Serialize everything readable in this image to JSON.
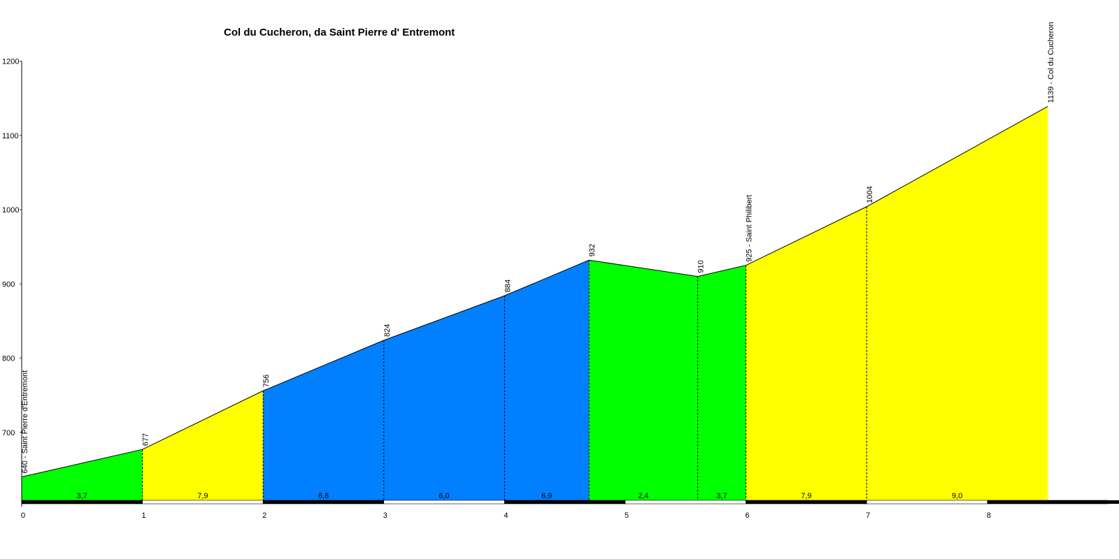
{
  "chart_data": {
    "type": "area",
    "title": "Col du Cucheron, da Saint Pierre d' Entremont",
    "xlabel": "",
    "ylabel": "",
    "xlim": [
      0,
      9
    ],
    "ylim": [
      600,
      1200
    ],
    "x_ticks": [
      0,
      1,
      2,
      3,
      4,
      5,
      6,
      7,
      8
    ],
    "y_ticks": [
      700,
      800,
      900,
      1000,
      1100,
      1200
    ],
    "points": [
      {
        "x": 0,
        "y": 640,
        "label": "640 - Saint Pierre d'Entremont"
      },
      {
        "x": 1,
        "y": 677,
        "label": "677"
      },
      {
        "x": 2,
        "y": 756,
        "label": "756"
      },
      {
        "x": 3,
        "y": 824,
        "label": "824"
      },
      {
        "x": 4,
        "y": 884,
        "label": "884"
      },
      {
        "x": 4.7,
        "y": 932,
        "label": "932"
      },
      {
        "x": 5.6,
        "y": 910,
        "label": "910"
      },
      {
        "x": 6,
        "y": 925,
        "label": "925 - Saint Philibert"
      },
      {
        "x": 7,
        "y": 1004,
        "label": "1004"
      },
      {
        "x": 8.5,
        "y": 1139,
        "label": "1139 - Col du Cucheron"
      }
    ],
    "segments": [
      {
        "from": 0,
        "to": 1,
        "gradient": "3,7",
        "color": "#00ff00"
      },
      {
        "from": 1,
        "to": 2,
        "gradient": "7,9",
        "color": "#ffff00"
      },
      {
        "from": 2,
        "to": 3,
        "gradient": "6,8",
        "color": "#0080ff"
      },
      {
        "from": 3,
        "to": 4,
        "gradient": "6,0",
        "color": "#0080ff"
      },
      {
        "from": 4,
        "to": 4.7,
        "gradient": "6,9",
        "color": "#0080ff"
      },
      {
        "from": 4.7,
        "to": 5.6,
        "gradient": "2,4",
        "color": "#00ff00"
      },
      {
        "from": 5.6,
        "to": 6,
        "gradient": "3,7",
        "color": "#00ff00"
      },
      {
        "from": 6,
        "to": 7,
        "gradient": "7,9",
        "color": "#ffff00"
      },
      {
        "from": 7,
        "to": 8.5,
        "gradient": "9,0",
        "color": "#ffff00"
      }
    ],
    "grid": false,
    "legend": "none"
  }
}
